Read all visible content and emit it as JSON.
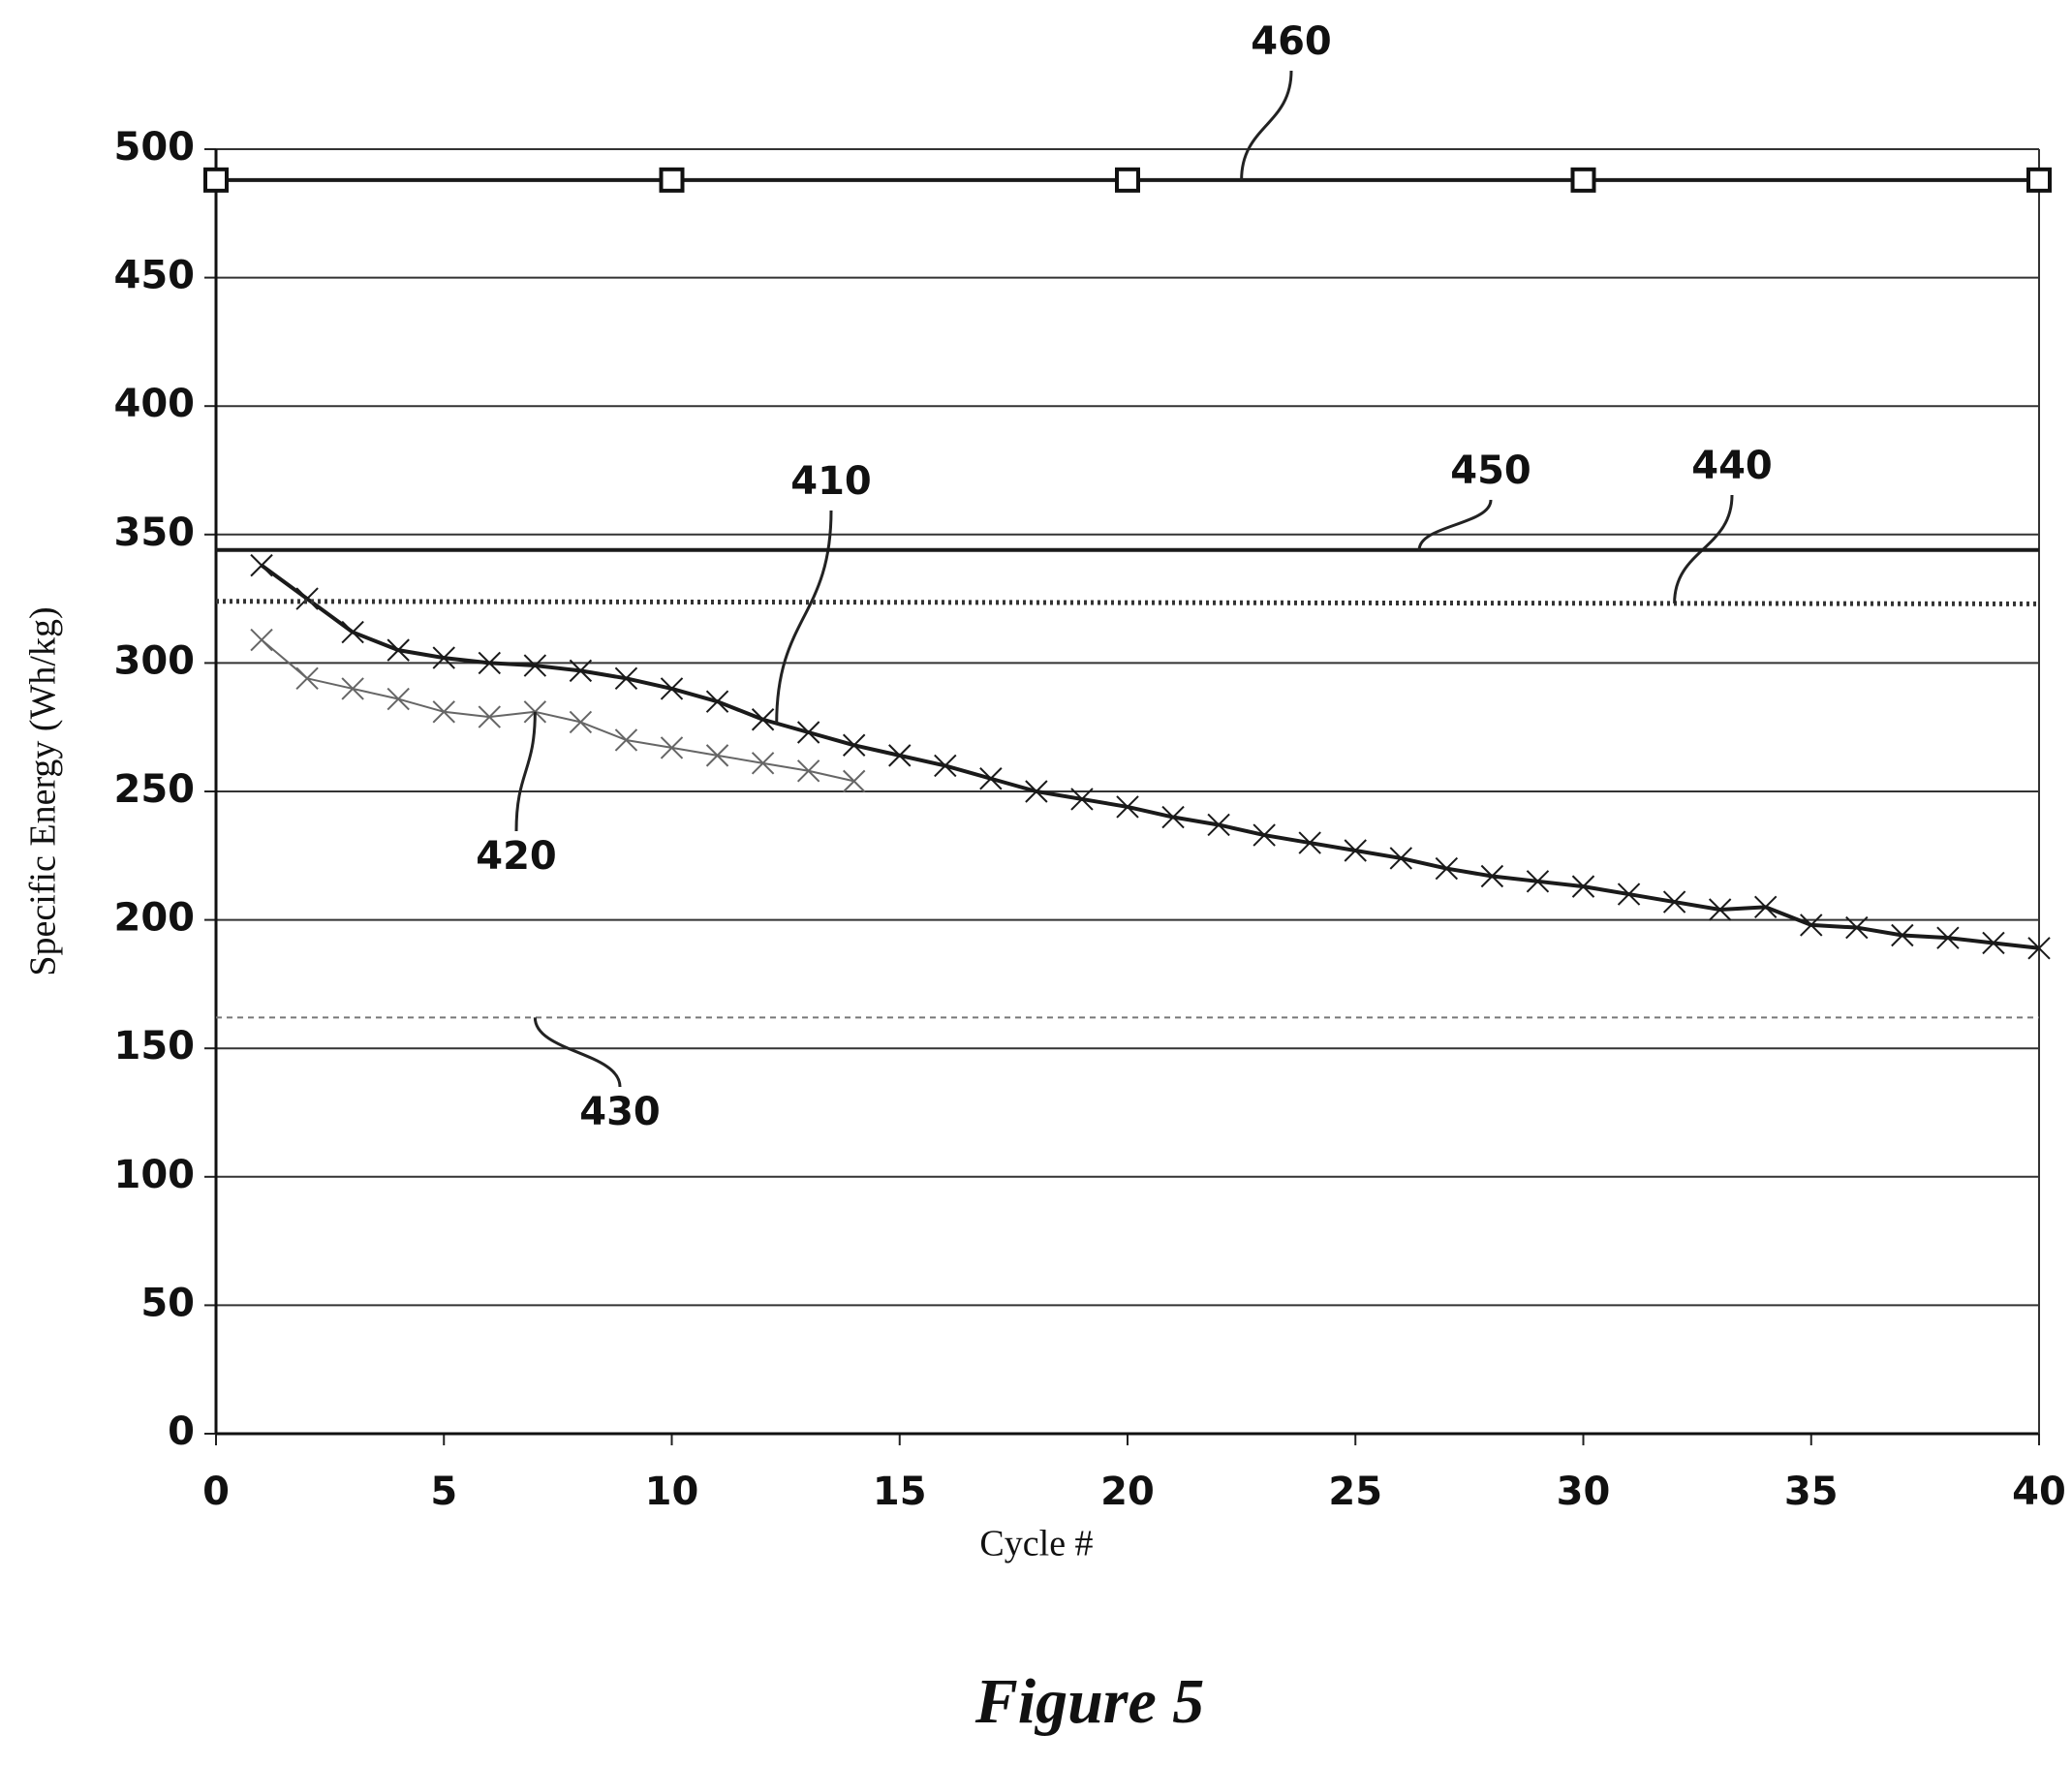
{
  "chart_data": {
    "type": "line",
    "title": "Figure 5",
    "x_label": "Cycle #",
    "y_label": "Specific Energy (Wh/kg)",
    "xlim": [
      0,
      40
    ],
    "xticks": [
      0,
      5,
      10,
      15,
      20,
      25,
      30,
      35,
      40
    ],
    "ylim": [
      0,
      500
    ],
    "yticks": [
      0,
      50,
      100,
      150,
      200,
      250,
      300,
      350,
      400,
      450,
      500
    ],
    "grid": true,
    "series": [
      {
        "name": "410",
        "color": "#1a1a1a",
        "line": "solid",
        "marker": "x",
        "x": [
          1,
          2,
          3,
          4,
          5,
          6,
          7,
          8,
          9,
          10,
          11,
          12,
          13,
          14,
          15,
          16,
          17,
          18,
          19,
          20,
          21,
          22,
          23,
          24,
          25,
          26,
          27,
          28,
          29,
          30,
          31,
          32,
          33,
          34,
          35,
          36,
          37,
          38,
          39,
          40
        ],
        "values": [
          338,
          325,
          312,
          305,
          302,
          300,
          299,
          297,
          294,
          290,
          285,
          278,
          273,
          268,
          264,
          260,
          255,
          250,
          247,
          244,
          240,
          237,
          233,
          230,
          227,
          224,
          220,
          217,
          215,
          213,
          210,
          207,
          204,
          205,
          198,
          197,
          194,
          193,
          191,
          189
        ]
      },
      {
        "name": "420",
        "color": "#666666",
        "line": "thin",
        "marker": "x",
        "x": [
          1,
          2,
          3,
          4,
          5,
          6,
          7,
          8,
          9,
          10,
          11,
          12,
          13,
          14
        ],
        "values": [
          309,
          294,
          290,
          286,
          281,
          279,
          281,
          277,
          270,
          267,
          264,
          261,
          258,
          254
        ]
      },
      {
        "name": "430",
        "color": "#777777",
        "line": "dashed",
        "marker": "none",
        "x": [
          0,
          40
        ],
        "values": [
          162,
          162
        ]
      },
      {
        "name": "440",
        "color": "#333333",
        "line": "dotted",
        "marker": "none",
        "x": [
          0,
          40
        ],
        "values": [
          324,
          323
        ]
      },
      {
        "name": "450",
        "color": "#1a1a1a",
        "line": "solid",
        "marker": "none",
        "x": [
          0,
          40
        ],
        "values": [
          344,
          344
        ]
      },
      {
        "name": "460",
        "color": "#1a1a1a",
        "line": "solid",
        "marker": "square",
        "x": [
          0,
          10,
          20,
          30,
          40
        ],
        "values": [
          488,
          488,
          488,
          488,
          488
        ]
      }
    ]
  }
}
